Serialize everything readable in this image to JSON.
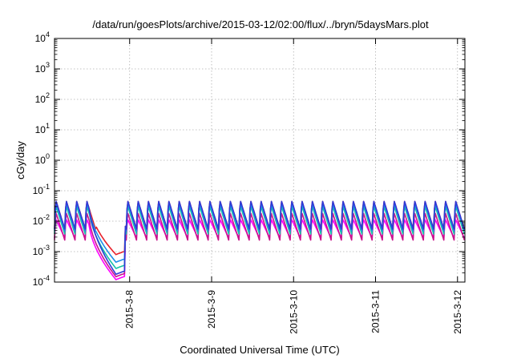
{
  "chart_data": {
    "type": "line",
    "title": "/data/run/goesPlots/archive/2015-03-12/02:00/flux/../bryn/5daysMars.plot",
    "xlabel": "Coordinated Universal Time (UTC)",
    "ylabel": "cGy/day",
    "yscale": "log",
    "ylim": [
      0.0001,
      10000
    ],
    "xlim": [
      "2015-03-07 02:00",
      "2015-03-12 02:10"
    ],
    "grid": true,
    "x_ticks": [
      "2015-3-8",
      "2015-3-9",
      "2015-3-10",
      "2015-3-11",
      "2015-3-12"
    ],
    "y_ticks": [
      {
        "base": "10",
        "exp": "-4"
      },
      {
        "base": "10",
        "exp": "-3"
      },
      {
        "base": "10",
        "exp": "-2"
      },
      {
        "base": "10",
        "exp": "-1"
      },
      {
        "base": "10",
        "exp": "0"
      },
      {
        "base": "10",
        "exp": "1"
      },
      {
        "base": "10",
        "exp": "2"
      },
      {
        "base": "10",
        "exp": "3"
      },
      {
        "base": "10",
        "exp": "4"
      }
    ],
    "series_colors": [
      "#e8202a",
      "#2e3ad8",
      "#1e8fe8",
      "#18c2a8",
      "#c8148c",
      "#ff00ff"
    ],
    "profile": {
      "quiet_peak": [
        0.05,
        0.05,
        0.042,
        0.034,
        0.02,
        0.012
      ],
      "quiet_trough": [
        0.0055,
        0.0055,
        0.0048,
        0.0038,
        0.0024,
        0.0028
      ],
      "drop_floor": [
        0.0008,
        0.00018,
        0.00045,
        0.00028,
        0.00015,
        0.00012
      ],
      "period_hours": 3
    }
  }
}
